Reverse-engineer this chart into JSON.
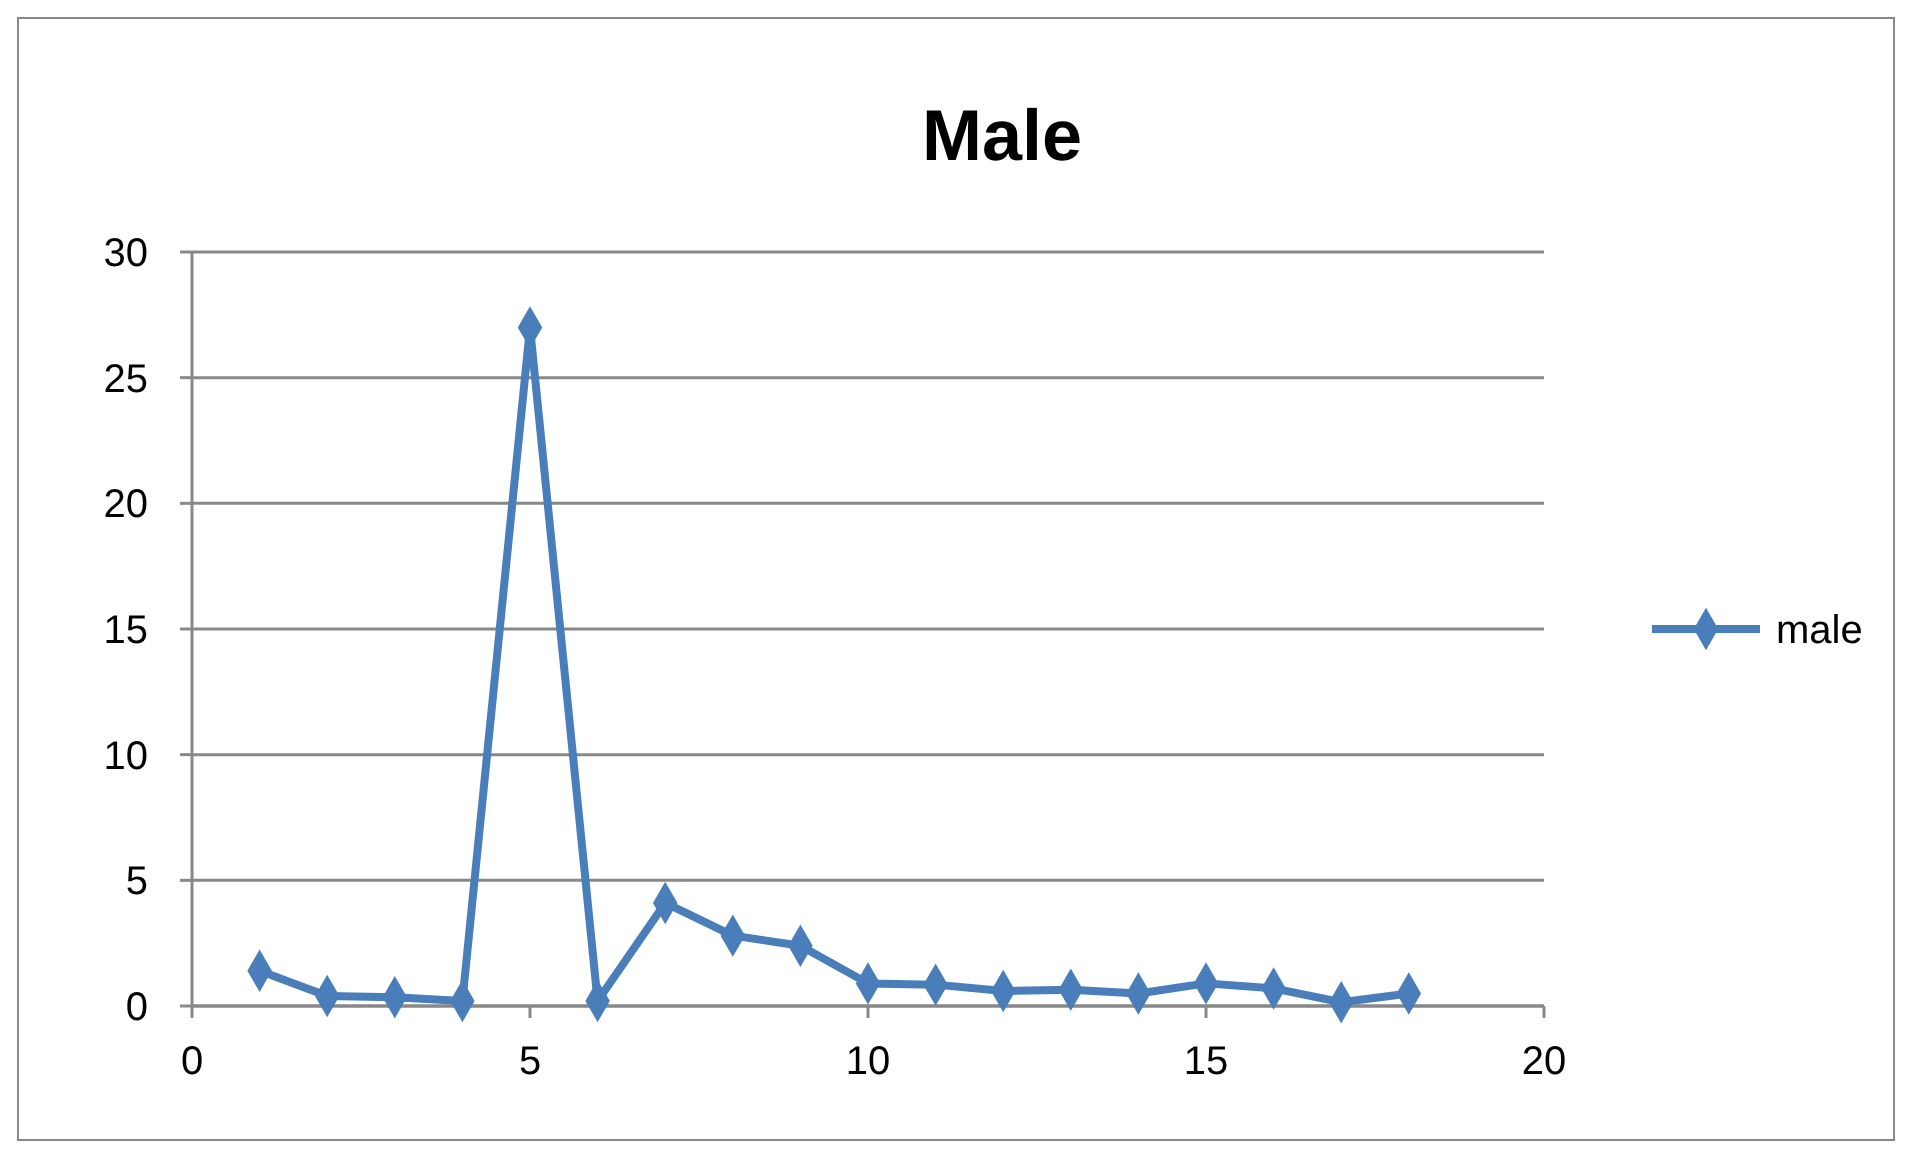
{
  "chart_data": {
    "type": "line",
    "title": "Male",
    "x": [
      1,
      2,
      3,
      4,
      5,
      6,
      7,
      8,
      9,
      10,
      11,
      12,
      13,
      14,
      15,
      16,
      17,
      18
    ],
    "series": [
      {
        "name": "male",
        "color": "#4a7ebb",
        "values": [
          1.4,
          0.4,
          0.35,
          0.2,
          27,
          0.2,
          4.1,
          2.8,
          2.4,
          0.9,
          0.85,
          0.6,
          0.65,
          0.5,
          0.9,
          0.7,
          0.15,
          0.5
        ]
      }
    ],
    "xlim": [
      0,
      20
    ],
    "xticks": [
      0,
      5,
      10,
      15,
      20
    ],
    "ylim": [
      0,
      30
    ],
    "yticks": [
      0,
      5,
      10,
      15,
      20,
      25,
      30
    ],
    "grid": "y",
    "legend": "right",
    "marker": "diamond",
    "line_style": "solid"
  }
}
